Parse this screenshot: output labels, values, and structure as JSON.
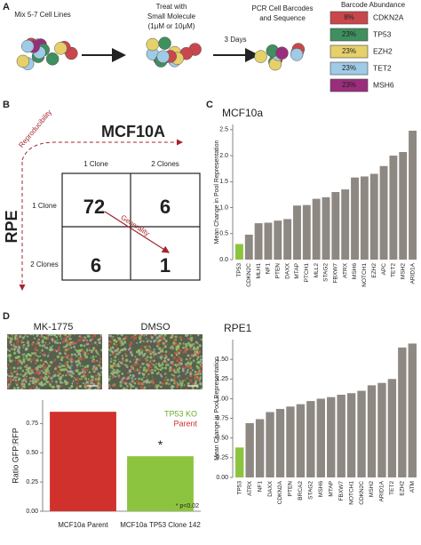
{
  "panel_labels": [
    "A",
    "B",
    "C",
    "D"
  ],
  "panel_a": {
    "step1": "Mix 5-7 Cell Lines",
    "step2": [
      "Treat with",
      "Small Molecule",
      "(1μM or 10μM)"
    ],
    "step3": "3 Days",
    "step4": [
      "PCR Cell Barcodes",
      "and Sequence"
    ],
    "legend_title": "Barcode Abundance",
    "legend": [
      {
        "percent": "8%",
        "gene": "CDKN2A",
        "color": "#c9474c"
      },
      {
        "percent": "23%",
        "gene": "TP53",
        "color": "#3f8f5f"
      },
      {
        "percent": "23%",
        "gene": "EZH2",
        "color": "#e6d06a"
      },
      {
        "percent": "23%",
        "gene": "TET2",
        "color": "#9fcbe6"
      },
      {
        "percent": "23%",
        "gene": "MSH6",
        "color": "#9a2d7c"
      }
    ]
  },
  "panel_b": {
    "col_title": "MCF10A",
    "row_title": "RPE",
    "col_arrow": "Reproducibility",
    "diag_arrow": "Generality",
    "col_labels": [
      "1 Clone",
      "2 Clones"
    ],
    "row_labels": [
      "1 Clone",
      "2 Clones"
    ],
    "cells": [
      [
        72,
        6
      ],
      [
        6,
        1
      ]
    ]
  },
  "panel_d": {
    "image_labels": [
      "MK-1775",
      "DMSO"
    ]
  },
  "chart_data": [
    {
      "type": "bar",
      "title": "MCF10a",
      "y_label": "Mean Change in Pool Representation",
      "categories": [
        "TP53",
        "CDKN2C",
        "MLH1",
        "NF1",
        "PTEN",
        "DAXX",
        "MTAP",
        "PTCH1",
        "MLL2",
        "STAG2",
        "FBXW7",
        "ATRX",
        "MSH6",
        "NOTCH1",
        "EZH2",
        "APC",
        "TET2",
        "MSH2",
        "ARID1A"
      ],
      "values": [
        0.3,
        0.48,
        0.7,
        0.71,
        0.75,
        0.78,
        1.04,
        1.05,
        1.17,
        1.2,
        1.3,
        1.35,
        1.58,
        1.6,
        1.65,
        1.8,
        2.0,
        2.07,
        2.48
      ],
      "colors": [
        "#8cc43f",
        "#8e8883",
        "#8e8883",
        "#8e8883",
        "#8e8883",
        "#8e8883",
        "#8e8883",
        "#8e8883",
        "#8e8883",
        "#8e8883",
        "#8e8883",
        "#8e8883",
        "#8e8883",
        "#8e8883",
        "#8e8883",
        "#8e8883",
        "#8e8883",
        "#8e8883",
        "#8e8883"
      ],
      "ylim": [
        0,
        2.6
      ],
      "yticks": [
        {
          "value": 0,
          "label": "0.0"
        },
        0.5,
        {
          "value": 1,
          "label": "1.0"
        },
        1.5,
        {
          "value": 2,
          "label": "2.0"
        },
        2.5
      ]
    },
    {
      "type": "bar",
      "title": "RPE1",
      "y_label": "Mean Change in Pool Representation",
      "categories": [
        "TP53",
        "ATRX",
        "NF1",
        "DAXX",
        "CDKN2A",
        "PTEN",
        "BRCA2",
        "STAG2",
        "MSH6",
        "MTAP",
        "FBXW7",
        "NOTCH1",
        "CDKN2C",
        "MSH2",
        "ARID1A",
        "TET2",
        "EZH2",
        "ATM"
      ],
      "values": [
        0.38,
        0.69,
        0.74,
        0.83,
        0.87,
        0.9,
        0.93,
        0.97,
        1.0,
        1.02,
        1.05,
        1.07,
        1.1,
        1.17,
        1.2,
        1.25,
        1.65,
        1.7
      ],
      "colors": [
        "#8cc43f",
        "#8e8883",
        "#8e8883",
        "#8e8883",
        "#8e8883",
        "#8e8883",
        "#8e8883",
        "#8e8883",
        "#8e8883",
        "#8e8883",
        "#8e8883",
        "#8e8883",
        "#8e8883",
        "#8e8883",
        "#8e8883",
        "#8e8883",
        "#8e8883",
        "#8e8883"
      ],
      "ylim": [
        0,
        1.75
      ],
      "yticks": [
        {
          "value": 0,
          "label": "0.00"
        },
        0.25,
        {
          "value": 0.5,
          "label": "0.50"
        },
        0.75,
        {
          "value": 1,
          "label": "1.00"
        },
        1.25,
        {
          "value": 1.5,
          "label": "1.50"
        }
      ]
    },
    {
      "type": "bar",
      "y_label": "Ratio GFP:RFP",
      "categories": [
        "MCF10a Parent",
        "MCF10a TP53 Clone 142"
      ],
      "values": [
        0.85,
        0.47
      ],
      "colors": [
        "#d0312d",
        "#8cc43f"
      ],
      "ylim": [
        0,
        0.95
      ],
      "yticks": [
        {
          "value": 0,
          "label": "0.00"
        },
        0.25,
        {
          "value": 0.5,
          "label": "0.50"
        },
        0.75
      ],
      "legend": [
        {
          "name": "TP53 KO",
          "color": "#6faa2f"
        },
        {
          "name": "Parent",
          "color": "#d0312d"
        }
      ],
      "annotations": [
        "*",
        "* p<0.02"
      ]
    }
  ]
}
